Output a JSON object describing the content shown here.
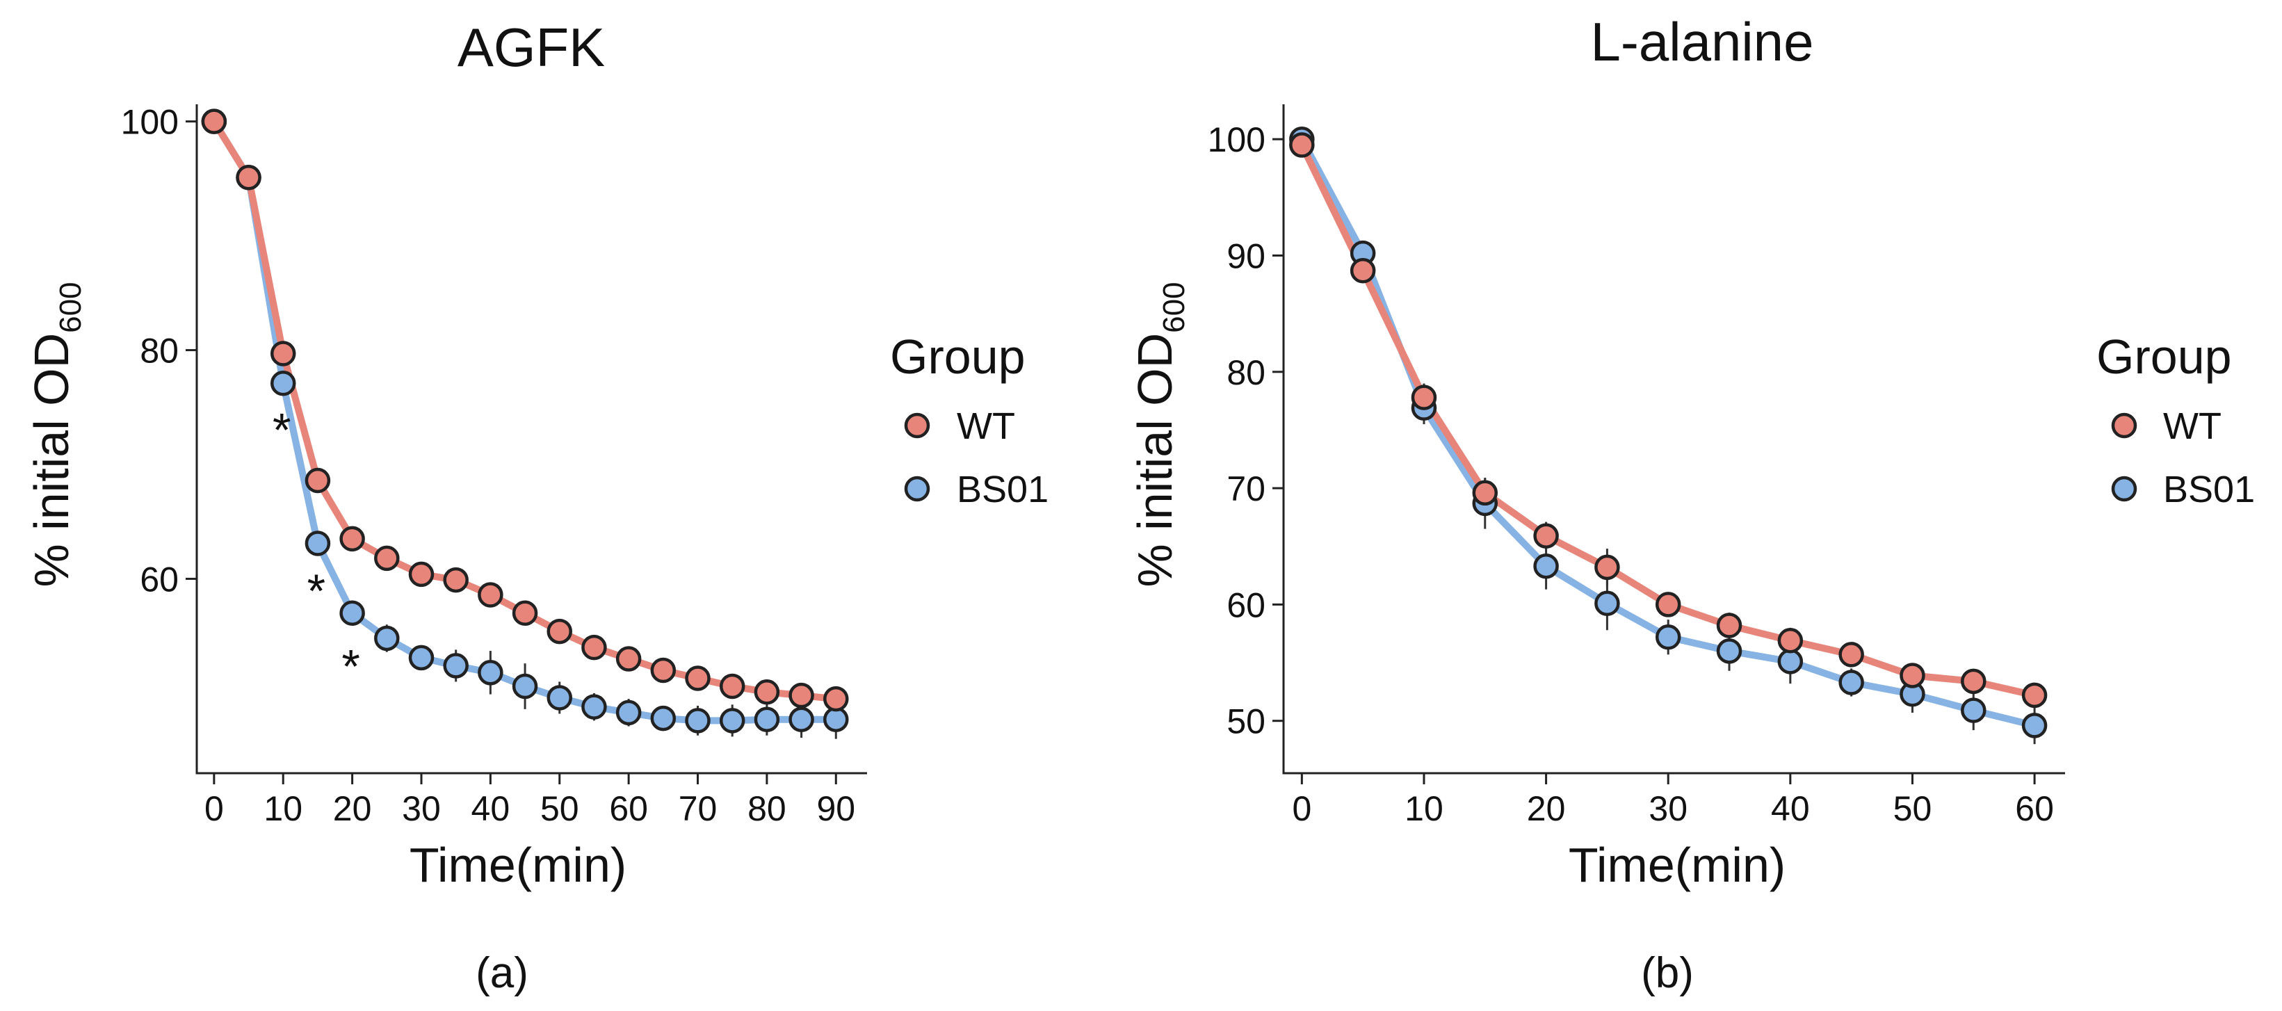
{
  "chart_data": [
    {
      "type": "line",
      "title": "AGFK",
      "panel_label": "(a)",
      "xlabel": "Time(min)",
      "ylabel": "% initial OD",
      "ylabel_subscript": "600",
      "xlim": [
        -2.5,
        94.5
      ],
      "ylim": [
        43,
        101.5
      ],
      "xticks": [
        0,
        10,
        20,
        30,
        40,
        50,
        60,
        70,
        80,
        90
      ],
      "xtick_labels": [
        "0",
        "10",
        "20",
        "30",
        "40",
        "50",
        "60",
        "70",
        "80",
        "90"
      ],
      "yticks": [
        60,
        80,
        100
      ],
      "ytick_labels": [
        "60",
        "80",
        "100"
      ],
      "x": [
        0,
        5,
        10,
        15,
        20,
        25,
        30,
        35,
        40,
        45,
        50,
        55,
        60,
        65,
        70,
        75,
        80,
        85,
        90
      ],
      "series": [
        {
          "name": "WT",
          "color": "#E8857A",
          "values": [
            100,
            95.1,
            79.7,
            68.6,
            63.5,
            61.8,
            60.4,
            59.9,
            58.6,
            57.0,
            55.4,
            54.0,
            53.0,
            52.0,
            51.3,
            50.6,
            50.1,
            49.8,
            49.5
          ],
          "errors": [
            0.2,
            0.4,
            0.6,
            0.5,
            0.6,
            0.6,
            0.6,
            1.0,
            1.0,
            0.9,
            0.7,
            0.6,
            0.6,
            0.6,
            0.6,
            0.6,
            0.7,
            0.8,
            0.9
          ]
        },
        {
          "name": "BS01",
          "color": "#86B2E4",
          "values": [
            100,
            95.1,
            77.1,
            63.1,
            57.0,
            54.8,
            53.1,
            52.4,
            51.8,
            50.6,
            49.6,
            48.8,
            48.3,
            47.8,
            47.6,
            47.6,
            47.7,
            47.7,
            47.7
          ],
          "errors": [
            0.2,
            0.4,
            0.7,
            0.7,
            0.8,
            1.2,
            0.8,
            1.4,
            1.9,
            2.0,
            1.4,
            1.2,
            1.2,
            1.1,
            1.3,
            1.4,
            1.4,
            1.6,
            1.7
          ]
        }
      ],
      "annotations": [
        {
          "text": "*",
          "x": 10,
          "y": 74.3
        },
        {
          "text": "*",
          "x": 15,
          "y": 60.2
        },
        {
          "text": "*",
          "x": 20,
          "y": 53.6
        }
      ],
      "legend": {
        "title": "Group",
        "entries": [
          "WT",
          "BS01"
        ],
        "placement": "right"
      }
    },
    {
      "type": "line",
      "title": "L-alanine",
      "panel_label": "(b)",
      "xlabel": "Time(min)",
      "ylabel": "% initial OD",
      "ylabel_subscript": "600",
      "xlim": [
        -1.5,
        62.5
      ],
      "ylim": [
        45.5,
        103
      ],
      "xticks": [
        0,
        10,
        20,
        30,
        40,
        50,
        60
      ],
      "xtick_labels": [
        "0",
        "10",
        "20",
        "30",
        "40",
        "50",
        "60"
      ],
      "yticks": [
        50,
        60,
        70,
        80,
        90,
        100
      ],
      "ytick_labels": [
        "50",
        "60",
        "70",
        "80",
        "90",
        "100"
      ],
      "x": [
        0,
        5,
        10,
        15,
        20,
        25,
        30,
        35,
        40,
        45,
        50,
        55,
        60
      ],
      "series": [
        {
          "name": "WT",
          "color": "#E8857A",
          "values": [
            99.5,
            88.7,
            77.8,
            69.6,
            65.9,
            63.2,
            60.0,
            58.2,
            56.9,
            55.7,
            53.9,
            53.4,
            52.2
          ],
          "errors": [
            0.5,
            0.8,
            1.2,
            1.2,
            1.2,
            1.6,
            0.9,
            1.1,
            1.1,
            0.8,
            1.0,
            0.8,
            0.9
          ]
        },
        {
          "name": "BS01",
          "color": "#86B2E4",
          "values": [
            100,
            90.2,
            76.9,
            68.7,
            63.3,
            60.1,
            57.2,
            56.0,
            55.1,
            53.3,
            52.3,
            50.9,
            49.6
          ],
          "errors": [
            0.5,
            0.8,
            1.4,
            2.2,
            2.0,
            2.3,
            1.5,
            1.7,
            1.9,
            1.2,
            1.6,
            1.7,
            1.6
          ]
        }
      ],
      "annotations": [],
      "legend": {
        "title": "Group",
        "entries": [
          "WT",
          "BS01"
        ],
        "placement": "right"
      }
    }
  ]
}
